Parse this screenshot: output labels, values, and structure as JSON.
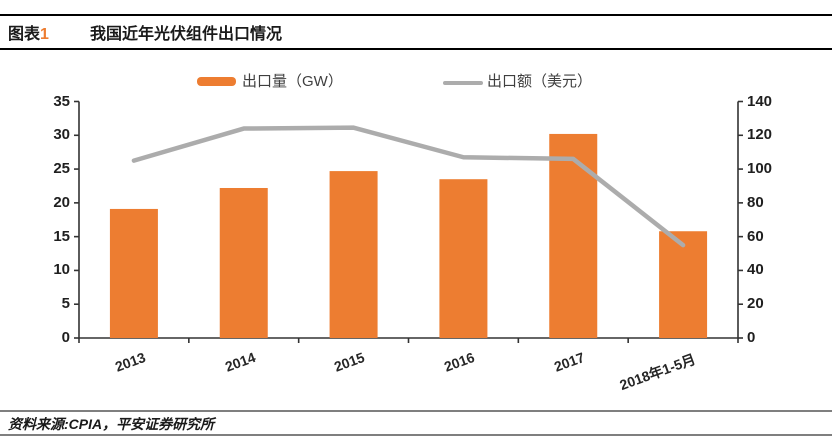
{
  "header": {
    "figure_label": "图表",
    "figure_number": "1",
    "title": "我国近年光伏组件出口情况"
  },
  "legend": {
    "items": [
      {
        "label": "出口量（GW）",
        "marker": "bar-swatch",
        "color": "#ED7D31"
      },
      {
        "label": "出口额（美元）",
        "marker": "line-swatch",
        "color": "#ACACAC"
      }
    ]
  },
  "chart_data": {
    "type": "bar+line",
    "title": "我国近年光伏组件出口情况",
    "categories": [
      "2013",
      "2014",
      "2015",
      "2016",
      "2017",
      "2018年1-5月"
    ],
    "series": [
      {
        "name": "出口量（GW）",
        "type": "bar",
        "axis": "left",
        "color": "#ED7D31",
        "values": [
          19.1,
          22.2,
          24.7,
          23.5,
          30.2,
          15.8
        ]
      },
      {
        "name": "出口额（美元）",
        "type": "line",
        "axis": "right",
        "color": "#ACACAC",
        "values": [
          105,
          124,
          124.5,
          107,
          106,
          55
        ]
      }
    ],
    "left_axis": {
      "min": 0,
      "max": 35,
      "step": 5,
      "ticks": [
        35,
        30,
        25,
        20,
        15,
        10,
        5,
        0
      ]
    },
    "right_axis": {
      "min": 0,
      "max": 140,
      "step": 20,
      "ticks": [
        140,
        120,
        100,
        80,
        60,
        40,
        20,
        0
      ]
    },
    "grid": false,
    "legend_position": "top"
  },
  "footer": {
    "source": "资料来源:CPIA，平安证券研究所"
  }
}
